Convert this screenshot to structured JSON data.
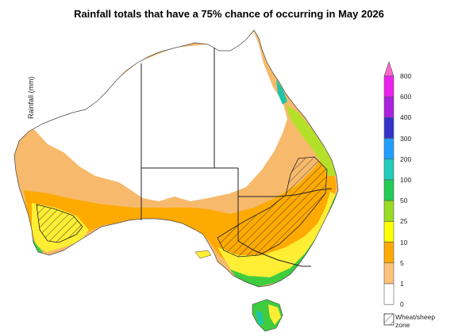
{
  "title": "Rainfall totals that have a 75% chance of occurring in May 2026",
  "legend": {
    "axis_label": "Rainfall (mm)",
    "ticks": [
      "800",
      "600",
      "400",
      "300",
      "200",
      "100",
      "50",
      "25",
      "10",
      "5",
      "1",
      "0"
    ],
    "colors": [
      "#ff66cc",
      "#ee22ee",
      "#aa22dd",
      "#3333cc",
      "#1f9fff",
      "#22ccbb",
      "#22cc55",
      "#99dd22",
      "#ffff00",
      "#ffaa00",
      "#ffc27a",
      "#ffffff"
    ],
    "wheat_sheep_label": "Wheat/sheep zone"
  },
  "map_colors": {
    "land_base": "#f7b96b",
    "dry": "#ffffff",
    "orange": "#ffaa00",
    "yellow": "#ffee33",
    "yellow_green": "#b5e02a",
    "green": "#3fcc3f",
    "teal": "#1fc5a8",
    "outline": "#222222"
  }
}
